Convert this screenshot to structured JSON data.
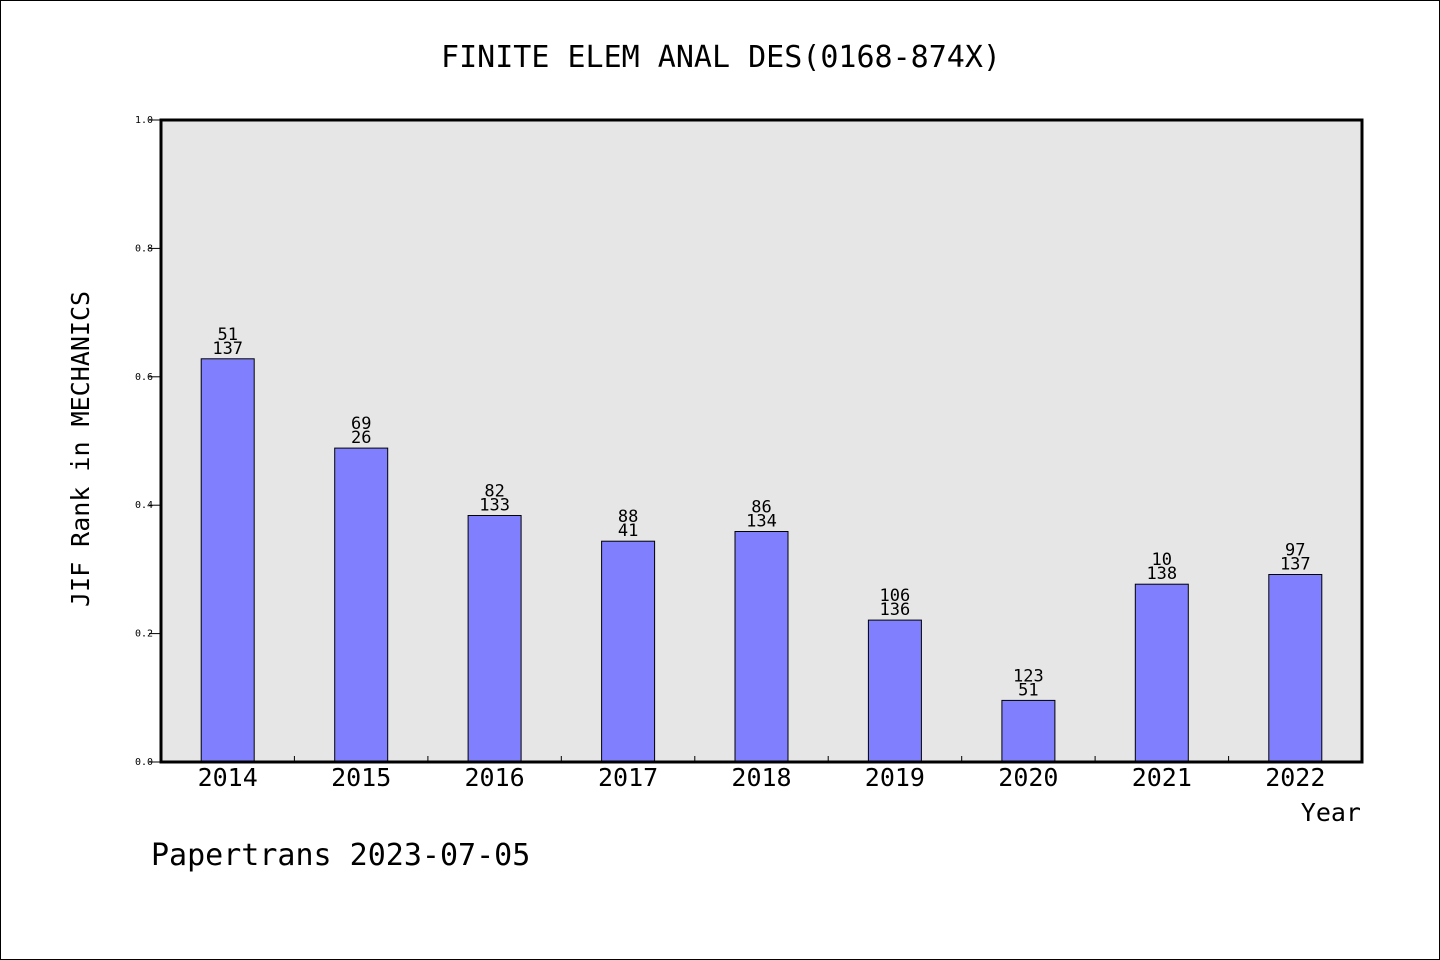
{
  "chart_data": {
    "type": "bar",
    "title": "FINITE ELEM ANAL DES(0168-874X)",
    "ylabel": "JIF Rank in MECHANICS",
    "xlabel": "Year",
    "categories": [
      "2014",
      "2015",
      "2016",
      "2017",
      "2018",
      "2019",
      "2020",
      "2021",
      "2022"
    ],
    "values": [
      0.628,
      0.489,
      0.384,
      0.344,
      0.359,
      0.221,
      0.096,
      0.277,
      0.292
    ],
    "rank_labels": [
      "51",
      "69",
      "82",
      "88",
      "86",
      "106",
      "123",
      "10",
      "97"
    ],
    "total_labels": [
      "137",
      "26",
      "133",
      "41",
      "134",
      "136",
      "51",
      "138",
      "137"
    ],
    "ylim": [
      0,
      1.0
    ],
    "yticks": [
      "0.0",
      "0.2",
      "0.4",
      "0.6",
      "0.8",
      "1.0"
    ],
    "grid": false,
    "colors": {
      "bar": "#8080ff",
      "plot_bg": "#e6e6e6",
      "axis": "#000000"
    }
  },
  "footer": {
    "text": "Papertrans 2023-07-05"
  }
}
